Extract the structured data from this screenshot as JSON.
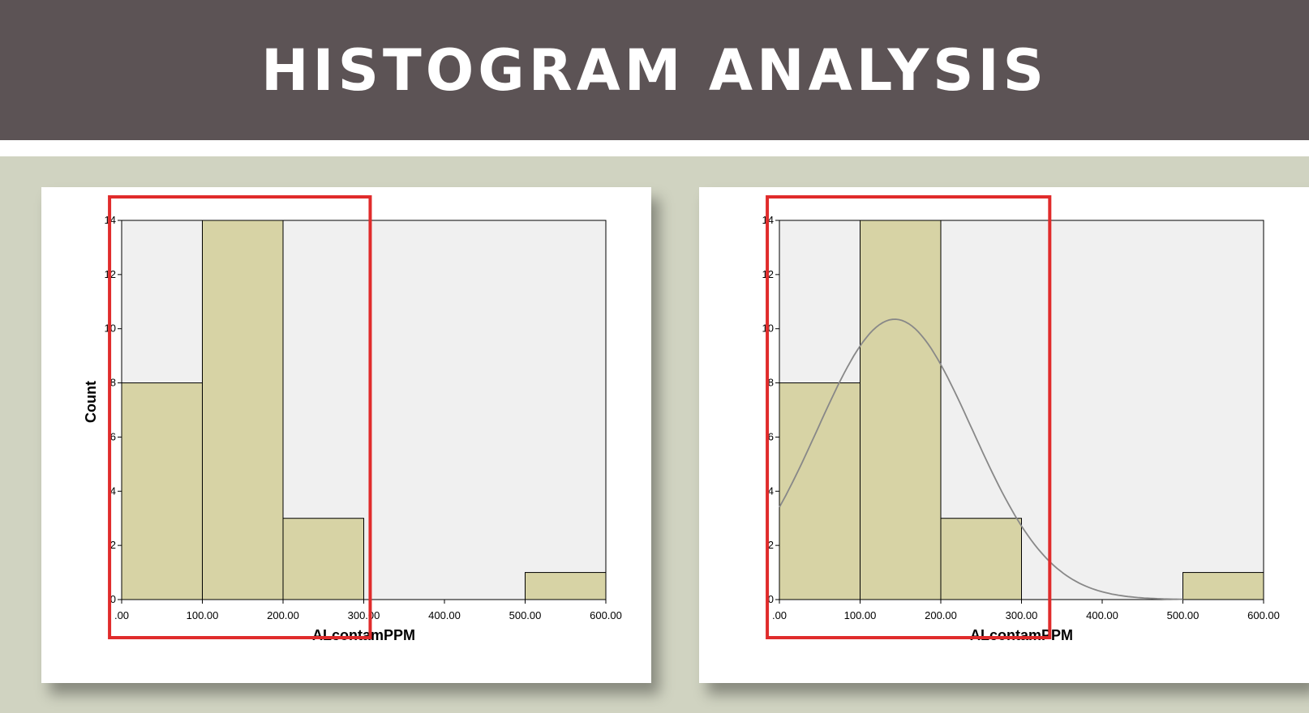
{
  "header": {
    "title": "HISTOGRAM ANALYSIS"
  },
  "colors": {
    "header_bg": "#5c5355",
    "slide_bg": "#d0d3c1",
    "plot_bg": "#f0f0f0",
    "bar_fill": "#d7d3a5",
    "highlight_box": "#e02b2b",
    "normal_curve": "#888888"
  },
  "chart_data": [
    {
      "type": "bar",
      "chart_subtype": "histogram",
      "bins": [
        {
          "x0": 0,
          "x1": 100,
          "count": 8
        },
        {
          "x0": 100,
          "x1": 200,
          "count": 14
        },
        {
          "x0": 200,
          "x1": 300,
          "count": 3
        },
        {
          "x0": 300,
          "x1": 400,
          "count": 0
        },
        {
          "x0": 400,
          "x1": 500,
          "count": 0
        },
        {
          "x0": 500,
          "x1": 600,
          "count": 1
        }
      ],
      "x_ticks": [
        ".00",
        "100.00",
        "200.00",
        "300.00",
        "400.00",
        "500.00",
        "600.00"
      ],
      "y_ticks": [
        "0",
        "2",
        "4",
        "6",
        "8",
        "10",
        "12",
        "14"
      ],
      "xlabel": "ALcontamPPM",
      "ylabel": "Count",
      "xlim": [
        0,
        600
      ],
      "ylim": [
        0,
        14
      ],
      "grid": false,
      "normal_curve": false,
      "highlight_range": [
        -15,
        308
      ]
    },
    {
      "type": "bar",
      "chart_subtype": "histogram",
      "bins": [
        {
          "x0": 0,
          "x1": 100,
          "count": 8
        },
        {
          "x0": 100,
          "x1": 200,
          "count": 14
        },
        {
          "x0": 200,
          "x1": 300,
          "count": 3
        },
        {
          "x0": 300,
          "x1": 400,
          "count": 0
        },
        {
          "x0": 400,
          "x1": 500,
          "count": 0
        },
        {
          "x0": 500,
          "x1": 600,
          "count": 1
        }
      ],
      "x_ticks": [
        ".00",
        "100.00",
        "200.00",
        "300.00",
        "400.00",
        "500.00",
        "600.00"
      ],
      "y_ticks": [
        "0",
        "2",
        "4",
        "6",
        "8",
        "10",
        "12",
        "14"
      ],
      "xlabel": "ALcontamPPM",
      "ylabel": "",
      "xlim": [
        0,
        600
      ],
      "ylim": [
        0,
        14
      ],
      "grid": false,
      "normal_curve": true,
      "normal_fit": {
        "mean": 143,
        "sd": 96,
        "peak_count": 10.35
      },
      "highlight_range": [
        -15,
        335
      ]
    }
  ]
}
